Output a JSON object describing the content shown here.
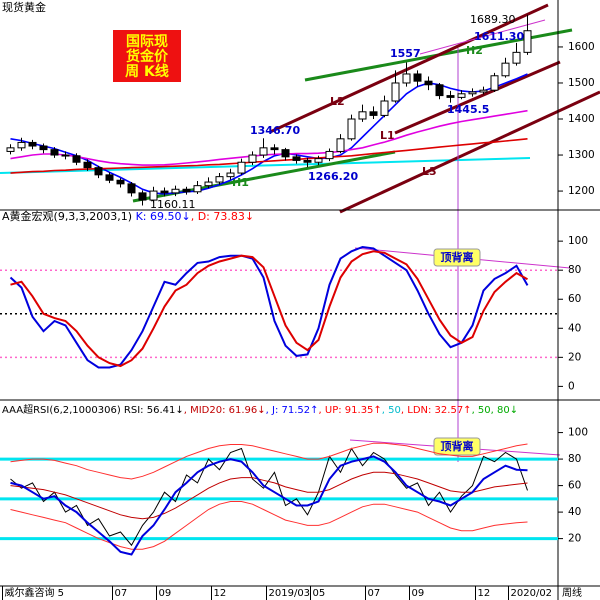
{
  "chart_data": [
    {
      "type": "candlestick",
      "title": "现货黄金",
      "open": [
        1310,
        1320,
        1335,
        1325,
        1315,
        1300,
        1298,
        1280,
        1265,
        1245,
        1230,
        1220,
        1195,
        1175,
        1200,
        1195,
        1205,
        1198,
        1215,
        1225,
        1240,
        1250,
        1280,
        1300,
        1320,
        1315,
        1295,
        1285,
        1280,
        1290,
        1310,
        1345,
        1400,
        1420,
        1410,
        1450,
        1500,
        1525,
        1505,
        1495,
        1465,
        1460,
        1470,
        1475,
        1480,
        1520,
        1555,
        1585
      ],
      "high": [
        1330,
        1348,
        1342,
        1332,
        1322,
        1310,
        1305,
        1288,
        1270,
        1252,
        1236,
        1225,
        1202,
        1212,
        1210,
        1215,
        1212,
        1228,
        1238,
        1250,
        1262,
        1290,
        1310,
        1346.7,
        1330,
        1320,
        1302,
        1292,
        1298,
        1318,
        1358,
        1412,
        1440,
        1435,
        1465,
        1535,
        1557,
        1535,
        1518,
        1500,
        1478,
        1480,
        1485,
        1490,
        1528,
        1570,
        1611.3,
        1689.3
      ],
      "low": [
        1302,
        1312,
        1316,
        1305,
        1292,
        1288,
        1272,
        1256,
        1236,
        1222,
        1210,
        1185,
        1160.11,
        1168,
        1185,
        1186,
        1190,
        1192,
        1208,
        1218,
        1232,
        1245,
        1272,
        1292,
        1302,
        1285,
        1276,
        1266.2,
        1272,
        1283,
        1305,
        1340,
        1392,
        1400,
        1405,
        1445,
        1490,
        1490,
        1480,
        1455,
        1445.5,
        1455,
        1462,
        1468,
        1475,
        1515,
        1548,
        1578
      ],
      "close": [
        1320,
        1335,
        1325,
        1315,
        1300,
        1298,
        1280,
        1265,
        1245,
        1230,
        1220,
        1195,
        1175,
        1200,
        1195,
        1205,
        1198,
        1215,
        1225,
        1240,
        1250,
        1280,
        1300,
        1320,
        1315,
        1295,
        1285,
        1280,
        1290,
        1310,
        1345,
        1400,
        1420,
        1410,
        1450,
        1500,
        1525,
        1505,
        1495,
        1465,
        1460,
        1470,
        1475,
        1480,
        1520,
        1555,
        1585,
        1645
      ],
      "series": [
        {
          "color": "#0000ff",
          "values": [
            1345,
            1340,
            1332,
            1325,
            1318,
            1308,
            1298,
            1285,
            1268,
            1252,
            1238,
            1222,
            1205,
            1195,
            1192,
            1195,
            1198,
            1200,
            1208,
            1218,
            1230,
            1245,
            1262,
            1282,
            1298,
            1305,
            1300,
            1295,
            1290,
            1292,
            1300,
            1320,
            1350,
            1380,
            1410,
            1440,
            1470,
            1490,
            1500,
            1495,
            1485,
            1478,
            1475,
            1478,
            1488,
            1500,
            1512,
            1525
          ]
        },
        {
          "color": "#e000e0",
          "values": [
            1290,
            1295,
            1300,
            1303,
            1303,
            1300,
            1296,
            1290,
            1284,
            1279,
            1276,
            1274,
            1272,
            1272,
            1273,
            1275,
            1278,
            1281,
            1284,
            1288,
            1291,
            1294,
            1297,
            1300,
            1302,
            1303,
            1304,
            1304,
            1305,
            1307,
            1310,
            1315,
            1320,
            1328,
            1336,
            1345,
            1355,
            1364,
            1372,
            1380,
            1387,
            1393,
            1398,
            1403,
            1408,
            1413,
            1418,
            1423
          ]
        },
        {
          "color": "#dd0000",
          "values": [
            1250,
            1252,
            1254,
            1255,
            1257,
            1258,
            1260,
            1261,
            1262,
            1263,
            1264,
            1265,
            1266,
            1267,
            1268,
            1269,
            1270,
            1271,
            1273,
            1274,
            1276,
            1278,
            1280,
            1282,
            1284,
            1286,
            1288,
            1290,
            1292,
            1294,
            1296,
            1298,
            1301,
            1304,
            1307,
            1310,
            1313,
            1316,
            1319,
            1322,
            1325,
            1328,
            1331,
            1334,
            1336,
            1339,
            1342,
            1345
          ]
        }
      ],
      "ylim": [
        1153,
        1697
      ],
      "yticks": [
        1200,
        1300,
        1400,
        1500,
        1600
      ],
      "annotations": [
        "1689.30",
        "1611.30",
        "1557",
        "1346.70",
        "1445.5",
        "1266.20",
        "1160.11"
      ],
      "trend_labels": [
        "H1",
        "H2",
        "L1",
        "L2",
        "L3"
      ],
      "badge": [
        "国际现",
        "货金价",
        "周 K线"
      ]
    },
    {
      "type": "line",
      "header": [
        {
          "text": "A黄金宏观(9,3,3,2003,1)",
          "color": "#000000"
        },
        {
          "text": "  K: 69.50↓",
          "color": "#0000ff"
        },
        {
          "text": ", D: 73.83↓",
          "color": "#ff0000"
        }
      ],
      "series": [
        {
          "name": "K",
          "color": "#0000dd",
          "values": [
            75,
            68,
            48,
            38,
            45,
            42,
            30,
            18,
            13,
            13,
            15,
            25,
            38,
            55,
            72,
            70,
            78,
            85,
            86,
            89,
            90,
            90,
            88,
            75,
            45,
            28,
            21,
            22,
            40,
            70,
            88,
            93,
            96,
            95,
            90,
            85,
            80,
            66,
            50,
            36,
            27,
            30,
            42,
            66,
            74,
            78,
            83,
            69.5
          ]
        },
        {
          "name": "D",
          "color": "#dd0000",
          "values": [
            70,
            72,
            62,
            50,
            47,
            45,
            38,
            28,
            20,
            16,
            14,
            18,
            26,
            40,
            55,
            66,
            70,
            78,
            83,
            86,
            88,
            90,
            89,
            82,
            62,
            42,
            30,
            25,
            32,
            55,
            75,
            86,
            91,
            93,
            92,
            88,
            84,
            74,
            60,
            46,
            35,
            30,
            34,
            52,
            65,
            72,
            78,
            73.83
          ]
        }
      ],
      "ref_lines": [
        {
          "value": 80,
          "color": "#ff66cc",
          "style": "dotted"
        },
        {
          "value": 50,
          "color": "#000000",
          "style": "dotted"
        },
        {
          "value": 20,
          "color": "#ff66cc",
          "style": "dotted"
        }
      ],
      "ylim": [
        -8,
        118
      ],
      "yticks": [
        0,
        20,
        40,
        60,
        80,
        100
      ],
      "badge": "顶背离"
    },
    {
      "type": "line",
      "header": [
        {
          "text": "AAA超RSI(6,2,1000306)",
          "color": "#000000"
        },
        {
          "text": " RSI: 56.41↓",
          "color": "#000000"
        },
        {
          "text": ", MID20: 61.96↓",
          "color": "#c00000"
        },
        {
          "text": ", J: 71.52↑",
          "color": "#0000ff"
        },
        {
          "text": ", UP: 91.35↑",
          "color": "#ff0000"
        },
        {
          "text": ", 50",
          "color": "#00bbcc"
        },
        {
          "text": ", LDN: 32.57↑",
          "color": "#ff0000"
        },
        {
          "text": ", 50, 80↓",
          "color": "#00aa00"
        }
      ],
      "series": [
        {
          "name": "RSI",
          "color": "#000000",
          "values": [
            65,
            58,
            62,
            48,
            55,
            40,
            45,
            30,
            35,
            22,
            25,
            15,
            30,
            40,
            55,
            48,
            68,
            62,
            80,
            72,
            85,
            88,
            65,
            58,
            70,
            45,
            50,
            38,
            55,
            82,
            70,
            88,
            75,
            85,
            80,
            68,
            58,
            62,
            45,
            55,
            40,
            52,
            60,
            82,
            78,
            85,
            80,
            56.41
          ]
        },
        {
          "name": "MID20",
          "color": "#c00000",
          "values": [
            60,
            59,
            58,
            57,
            55,
            53,
            50,
            47,
            44,
            41,
            38,
            36,
            35,
            36,
            39,
            43,
            48,
            53,
            58,
            62,
            65,
            66,
            66,
            64,
            62,
            59,
            57,
            55,
            55,
            57,
            61,
            65,
            68,
            70,
            70,
            69,
            67,
            65,
            62,
            59,
            56,
            55,
            55,
            57,
            59,
            60,
            61,
            61.96
          ]
        },
        {
          "name": "UP",
          "color": "#ff3030",
          "values": [
            78,
            79,
            80,
            80,
            79,
            77,
            75,
            72,
            70,
            68,
            66,
            65,
            67,
            70,
            74,
            78,
            82,
            85,
            88,
            90,
            91,
            91,
            90,
            88,
            86,
            84,
            82,
            80,
            80,
            82,
            85,
            88,
            90,
            92,
            92,
            91,
            90,
            88,
            86,
            84,
            83,
            82,
            82,
            84,
            86,
            88,
            90,
            91.35
          ]
        },
        {
          "name": "LDN",
          "color": "#ff3030",
          "values": [
            42,
            40,
            38,
            36,
            34,
            32,
            28,
            24,
            20,
            17,
            14,
            12,
            12,
            14,
            18,
            24,
            30,
            36,
            42,
            46,
            48,
            48,
            46,
            42,
            38,
            34,
            32,
            30,
            30,
            32,
            36,
            40,
            44,
            46,
            46,
            44,
            42,
            40,
            36,
            32,
            28,
            26,
            26,
            28,
            30,
            31,
            32,
            32.57
          ]
        },
        {
          "name": "J",
          "color": "#0000dd",
          "values": [
            62,
            60,
            55,
            50,
            52,
            45,
            40,
            32,
            25,
            18,
            10,
            8,
            22,
            30,
            42,
            55,
            62,
            70,
            75,
            78,
            80,
            78,
            70,
            60,
            55,
            50,
            45,
            45,
            48,
            65,
            75,
            78,
            80,
            82,
            78,
            70,
            60,
            55,
            50,
            48,
            45,
            50,
            55,
            65,
            70,
            75,
            72,
            71.52
          ]
        }
      ],
      "ref_lines": [
        {
          "value": 80,
          "color": "#00e5f0",
          "style": "solid"
        },
        {
          "value": 50,
          "color": "#00e5f0",
          "style": "solid"
        },
        {
          "value": 20,
          "color": "#00e5f0",
          "style": "solid"
        }
      ],
      "ylim": [
        -15,
        111
      ],
      "yticks": [
        20,
        40,
        60,
        80,
        100
      ],
      "badge": "顶背离",
      "categories": [
        "威尔鑫咨询 5",
        null,
        null,
        null,
        null,
        null,
        null,
        null,
        null,
        null,
        "07",
        null,
        null,
        null,
        "09",
        null,
        null,
        null,
        null,
        "12",
        null,
        null,
        null,
        null,
        "2019/03",
        null,
        null,
        null,
        "05",
        null,
        null,
        null,
        null,
        "07",
        null,
        null,
        null,
        "09",
        null,
        null,
        null,
        null,
        null,
        "12",
        null,
        null,
        "2020/02",
        null
      ],
      "x_unit": "周线"
    }
  ]
}
